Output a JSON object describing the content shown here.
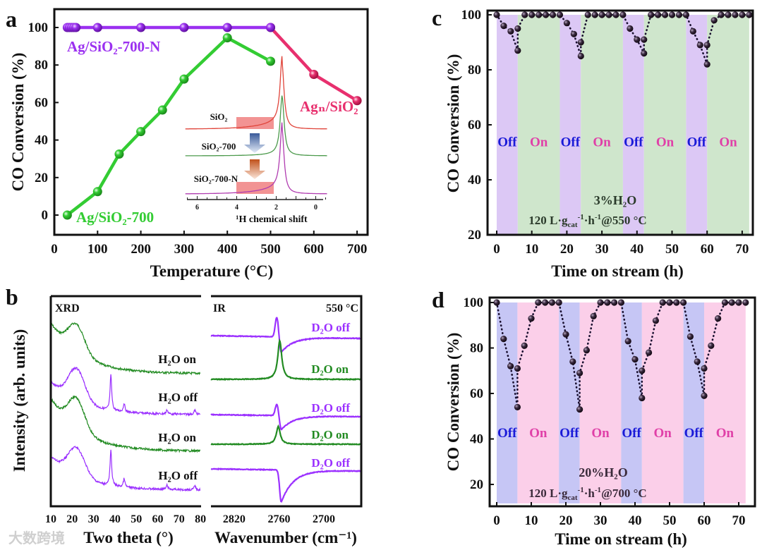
{
  "panel_letters": [
    "a",
    "b",
    "c",
    "d"
  ],
  "watermark": "大数跨境",
  "chart_data": [
    {
      "panel": "a",
      "type": "line",
      "xlabel": "Temperature (°C)",
      "ylabel": "CO Conversion (%)",
      "xlim": [
        0,
        725
      ],
      "ylim": [
        -10,
        110
      ],
      "xticks": [
        0,
        100,
        200,
        300,
        400,
        500,
        600,
        700
      ],
      "yticks": [
        0,
        20,
        40,
        60,
        80,
        100
      ],
      "series": [
        {
          "name": "Ag/SiO₂-700-N",
          "color": "#9b30f0",
          "points": [
            [
              30,
              100
            ],
            [
              35,
              100
            ],
            [
              40,
              100
            ],
            [
              45,
              100
            ],
            [
              50,
              100
            ],
            [
              100,
              100
            ],
            [
              200,
              100
            ],
            [
              300,
              100
            ],
            [
              400,
              100
            ],
            [
              500,
              100
            ]
          ]
        },
        {
          "name": "Ag/SiO₂-700",
          "color": "#33cc33",
          "points": [
            [
              30,
              0
            ],
            [
              100,
              12.5
            ],
            [
              150,
              32.5
            ],
            [
              200,
              44.5
            ],
            [
              250,
              56
            ],
            [
              300,
              72.5
            ],
            [
              400,
              94.5
            ],
            [
              500,
              82
            ]
          ]
        },
        {
          "name": "Agₙ/SiO₂",
          "color": "#e8306e",
          "points": [
            [
              500,
              100
            ],
            [
              600,
              75
            ],
            [
              700,
              61
            ]
          ]
        }
      ]
    },
    {
      "panel": "a-inset",
      "type": "line",
      "xlabel": "¹H chemical shift",
      "xlim": [
        6.5,
        -0.6
      ],
      "xticks": [
        6,
        4,
        2,
        0
      ],
      "highlight_ppm": [
        4,
        2.1
      ],
      "series": [
        {
          "name": "SiO₂",
          "color": "#e0443a",
          "peak_ppm": 1.7
        },
        {
          "name": "SiO₂-700",
          "color": "#4c9a4c",
          "peak_ppm": 1.7
        },
        {
          "name": "SiO₂-700-N",
          "color": "#b03cb0",
          "peak_ppm": 1.7
        }
      ]
    },
    {
      "panel": "b-xrd",
      "type": "line",
      "label": "XRD",
      "xlabel": "Two theta (°)",
      "ylabel": "Intensity (arb. units)",
      "xlim": [
        10,
        80
      ],
      "xticks": [
        10,
        20,
        30,
        40,
        50,
        60,
        70,
        80
      ],
      "series": [
        {
          "name": "H₂O on",
          "color": "#228b22",
          "broad_hump_2theta": 22,
          "peaks_2theta": []
        },
        {
          "name": "H₂O off",
          "color": "#9b30ff",
          "broad_hump_2theta": 22,
          "peaks_2theta": [
            38.1,
            44.3,
            64.4,
            77.4
          ]
        },
        {
          "name": "H₂O on",
          "color": "#228b22",
          "broad_hump_2theta": 22,
          "peaks_2theta": []
        },
        {
          "name": "H₂O off",
          "color": "#9b30ff",
          "broad_hump_2theta": 22,
          "peaks_2theta": [
            38.1,
            44.3,
            64.4,
            77.4
          ]
        }
      ]
    },
    {
      "panel": "b-ir",
      "type": "line",
      "label": "IR",
      "annotation": "550 °C",
      "xlabel": "Wavenumber (cm⁻¹)",
      "xlim": [
        2851,
        2650
      ],
      "xticks": [
        2820,
        2760,
        2700
      ],
      "series": [
        {
          "name": "D₂O off",
          "color": "#9b30ff",
          "shape": "derivative",
          "band_cm": 2760
        },
        {
          "name": "D₂O on",
          "color": "#228b22",
          "shape": "peak",
          "band_cm": 2759
        },
        {
          "name": "D₂O off",
          "color": "#9b30ff",
          "shape": "derivative",
          "band_cm": 2760
        },
        {
          "name": "D₂O on",
          "color": "#228b22",
          "shape": "peak",
          "band_cm": 2761
        },
        {
          "name": "D₂O off",
          "color": "#9b30ff",
          "shape": "negative",
          "band_cm": 2757
        }
      ]
    },
    {
      "panel": "c",
      "type": "line",
      "xlabel": "Time on stream (h)",
      "ylabel": "CO Conversion (%)",
      "xlim": [
        -2.6,
        73
      ],
      "ylim": [
        20,
        101.5
      ],
      "xticks": [
        0,
        10,
        20,
        30,
        40,
        50,
        60,
        70
      ],
      "yticks": [
        20,
        40,
        60,
        80,
        100
      ],
      "band_colors": {
        "Off": "#dcc8f5",
        "On": "#cfe6cc"
      },
      "label_colors": {
        "Off": "#1a1ad8",
        "On": "#e040a8"
      },
      "band_label_level": 54,
      "bands": [
        {
          "from": 0,
          "to": 6,
          "state": "Off"
        },
        {
          "from": 6,
          "to": 18,
          "state": "On"
        },
        {
          "from": 18,
          "to": 24,
          "state": "Off"
        },
        {
          "from": 24,
          "to": 36,
          "state": "On"
        },
        {
          "from": 36,
          "to": 42,
          "state": "Off"
        },
        {
          "from": 42,
          "to": 54,
          "state": "On"
        },
        {
          "from": 54,
          "to": 60,
          "state": "Off"
        },
        {
          "from": 60,
          "to": 72,
          "state": "On"
        }
      ],
      "points": [
        [
          0,
          100
        ],
        [
          2,
          96
        ],
        [
          4,
          94
        ],
        [
          6,
          87
        ],
        [
          6,
          95
        ],
        [
          8,
          100
        ],
        [
          10,
          100
        ],
        [
          12,
          100
        ],
        [
          14,
          100
        ],
        [
          16,
          100
        ],
        [
          18,
          100
        ],
        [
          20,
          97
        ],
        [
          22,
          93
        ],
        [
          24,
          85
        ],
        [
          24,
          90
        ],
        [
          26,
          100
        ],
        [
          28,
          100
        ],
        [
          30,
          100
        ],
        [
          32,
          100
        ],
        [
          34,
          100
        ],
        [
          36,
          100
        ],
        [
          38,
          95
        ],
        [
          40,
          91
        ],
        [
          42,
          86
        ],
        [
          42,
          91
        ],
        [
          44,
          100
        ],
        [
          46,
          100
        ],
        [
          48,
          100
        ],
        [
          50,
          100
        ],
        [
          52,
          100
        ],
        [
          54,
          100
        ],
        [
          56,
          94
        ],
        [
          58,
          89
        ],
        [
          60,
          82
        ],
        [
          60,
          89
        ],
        [
          62,
          98
        ],
        [
          64,
          100
        ],
        [
          66,
          100
        ],
        [
          68,
          100
        ],
        [
          70,
          100
        ],
        [
          72,
          100
        ]
      ],
      "annotation": "3%H₂O",
      "condition": {
        "a": "120 L·g",
        "sub": "cat",
        "sup1": "-1",
        "b": "·h",
        "sup2": "-1",
        "c": "@550 °C"
      }
    },
    {
      "panel": "d",
      "type": "line",
      "xlabel": "Time on stream (h)",
      "ylabel": "CO Conversion (%)",
      "xlim": [
        -2,
        74
      ],
      "ylim": [
        10.4,
        102
      ],
      "xticks": [
        0,
        10,
        20,
        30,
        40,
        50,
        60,
        70
      ],
      "yticks": [
        20,
        40,
        60,
        80,
        100
      ],
      "band_colors": {
        "Off": "#c6c6f5",
        "On": "#fbcfe9"
      },
      "label_colors": {
        "Off": "#1a1ad8",
        "On": "#e040a8"
      },
      "band_label_level": 43,
      "bands": [
        {
          "from": 0,
          "to": 6,
          "state": "Off"
        },
        {
          "from": 6,
          "to": 18,
          "state": "On"
        },
        {
          "from": 18,
          "to": 24,
          "state": "Off"
        },
        {
          "from": 24,
          "to": 36,
          "state": "On"
        },
        {
          "from": 36,
          "to": 42,
          "state": "Off"
        },
        {
          "from": 42,
          "to": 54,
          "state": "On"
        },
        {
          "from": 54,
          "to": 60,
          "state": "Off"
        },
        {
          "from": 60,
          "to": 72,
          "state": "On"
        }
      ],
      "points": [
        [
          0,
          100
        ],
        [
          2,
          84
        ],
        [
          4,
          72
        ],
        [
          6,
          54
        ],
        [
          6,
          71
        ],
        [
          8,
          81
        ],
        [
          10,
          93
        ],
        [
          12,
          100
        ],
        [
          14,
          100
        ],
        [
          16,
          100
        ],
        [
          18,
          100
        ],
        [
          20,
          86
        ],
        [
          22,
          74
        ],
        [
          24,
          53
        ],
        [
          24,
          69
        ],
        [
          26,
          79
        ],
        [
          28,
          94
        ],
        [
          30,
          100
        ],
        [
          32,
          100
        ],
        [
          34,
          100
        ],
        [
          36,
          100
        ],
        [
          38,
          83
        ],
        [
          40,
          75
        ],
        [
          42,
          58
        ],
        [
          42,
          70
        ],
        [
          44,
          78
        ],
        [
          46,
          92
        ],
        [
          48,
          100
        ],
        [
          50,
          100
        ],
        [
          52,
          100
        ],
        [
          54,
          100
        ],
        [
          56,
          85
        ],
        [
          58,
          74
        ],
        [
          60,
          59
        ],
        [
          60,
          71
        ],
        [
          62,
          81
        ],
        [
          64,
          93
        ],
        [
          66,
          100
        ],
        [
          68,
          100
        ],
        [
          70,
          100
        ],
        [
          72,
          100
        ]
      ],
      "annotation": "20%H₂O",
      "condition": {
        "a": "120 L·g",
        "sub": "cat",
        "sup1": "-1",
        "b": "·h",
        "sup2": "-1",
        "c": "@700 °C"
      }
    }
  ]
}
